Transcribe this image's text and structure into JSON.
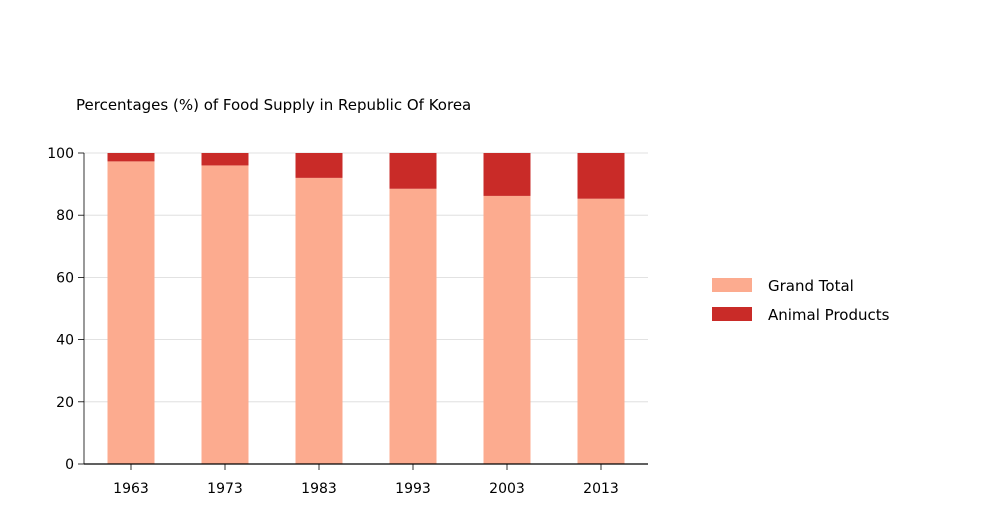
{
  "chart_data": {
    "type": "bar",
    "stacked": true,
    "title": "Percentages (%) of Food Supply in Republic Of Korea",
    "xlabel": "",
    "ylabel": "",
    "categories": [
      "1963",
      "1973",
      "1983",
      "1993",
      "2003",
      "2013"
    ],
    "series": [
      {
        "name": "Grand Total",
        "color": "#fcab8f",
        "values": [
          97.3,
          96.0,
          92.0,
          88.5,
          86.2,
          85.3
        ]
      },
      {
        "name": "Animal Products",
        "color": "#c92b28",
        "values": [
          2.7,
          4.0,
          8.0,
          11.5,
          13.8,
          14.7
        ]
      }
    ],
    "ylim": [
      0,
      100
    ],
    "yticks": [
      0,
      20,
      40,
      60,
      80,
      100
    ],
    "grid": true,
    "legend_position": "right"
  }
}
